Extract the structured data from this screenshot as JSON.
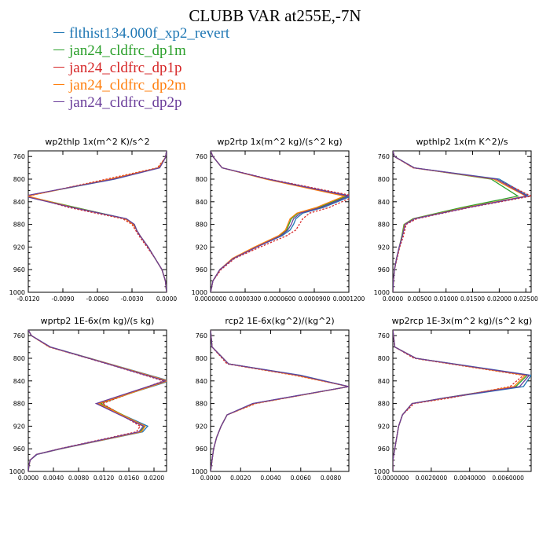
{
  "page_title": "CLUBB VAR at255E,-7N",
  "colors": {
    "blue": "#1f77b4",
    "green": "#2ca02c",
    "red": "#d62728",
    "orange": "#ff7f0e",
    "purple": "#6a3d9a"
  },
  "legend": [
    {
      "label": "flthist134.000f_xp2_revert",
      "color": "#1f77b4"
    },
    {
      "label": "jan24_cldfrc_dp1m",
      "color": "#2ca02c"
    },
    {
      "label": "jan24_cldfrc_dp1p",
      "color": "#d62728"
    },
    {
      "label": "jan24_cldfrc_dp2m",
      "color": "#ff7f0e"
    },
    {
      "label": "jan24_cldfrc_dp2p",
      "color": "#6a3d9a"
    }
  ],
  "chart_data": [
    {
      "type": "line",
      "title": "wp2thlp  1x(m^2 K)/s^2",
      "xlim": [
        -0.012,
        0.0
      ],
      "ylim": [
        760,
        1000
      ],
      "xticks": [
        "-0.0120",
        "-0.0090",
        "-0.0060",
        "-0.0030",
        "0.0000"
      ],
      "xtick_values": [
        -0.012,
        -0.009,
        -0.006,
        -0.003,
        0.0
      ],
      "yticks": [
        "760",
        "800",
        "840",
        "880",
        "920",
        "960",
        "1000"
      ],
      "y": [
        750,
        762,
        780,
        800,
        830,
        850,
        870,
        880,
        890,
        900,
        920,
        940,
        960,
        980,
        1000
      ],
      "series": [
        {
          "name": "flthist134.000f_xp2_revert",
          "color": "#1f77b4",
          "dash": false,
          "values": [
            0,
            -0.0001,
            -0.0006,
            -0.0045,
            -0.0123,
            -0.008,
            -0.0035,
            -0.0028,
            -0.0026,
            -0.0023,
            -0.0016,
            -0.001,
            -0.0004,
            -0.0001,
            0
          ]
        },
        {
          "name": "jan24_cldfrc_dp1m",
          "color": "#2ca02c",
          "dash": false,
          "values": [
            0,
            -0.0001,
            -0.0007,
            -0.0047,
            -0.0122,
            -0.0079,
            -0.0036,
            -0.0028,
            -0.0026,
            -0.0023,
            -0.0016,
            -0.001,
            -0.0004,
            -0.0001,
            0
          ]
        },
        {
          "name": "jan24_cldfrc_dp1p",
          "color": "#d62728",
          "dash": true,
          "values": [
            0,
            -0.0001,
            -0.0008,
            -0.0052,
            -0.012,
            -0.0085,
            -0.0038,
            -0.003,
            -0.0027,
            -0.0024,
            -0.0017,
            -0.001,
            -0.0004,
            -0.0001,
            0
          ]
        },
        {
          "name": "jan24_cldfrc_dp2m",
          "color": "#ff7f0e",
          "dash": false,
          "values": [
            0,
            -0.0001,
            -0.0007,
            -0.0049,
            -0.0121,
            -0.0081,
            -0.0036,
            -0.0029,
            -0.0026,
            -0.0023,
            -0.0016,
            -0.001,
            -0.0004,
            -0.0001,
            0
          ]
        },
        {
          "name": "jan24_cldfrc_dp2p",
          "color": "#6a3d9a",
          "dash": false,
          "values": [
            0,
            -0.0001,
            -0.0006,
            -0.0046,
            -0.0124,
            -0.0082,
            -0.0035,
            -0.0028,
            -0.0026,
            -0.0023,
            -0.0016,
            -0.001,
            -0.0004,
            -0.0001,
            0
          ]
        }
      ]
    },
    {
      "type": "line",
      "title": "wp2rtp  1x(m^2 kg)/(s^2 kg)",
      "xlim": [
        0.0,
        0.00012
      ],
      "ylim": [
        760,
        1000
      ],
      "xticks": [
        "0.0000000",
        "0.0000300",
        "0.0000600",
        "0.0000900",
        "0.0001200"
      ],
      "xtick_values": [
        0,
        3e-05,
        6e-05,
        9e-05,
        0.00012
      ],
      "yticks": [
        "760",
        "800",
        "840",
        "880",
        "920",
        "960",
        "1000"
      ],
      "y": [
        750,
        760,
        780,
        800,
        830,
        850,
        860,
        870,
        880,
        890,
        900,
        920,
        940,
        960,
        980,
        1000
      ],
      "series": [
        {
          "name": "flthist134.000f_xp2_revert",
          "color": "#1f77b4",
          "dash": false,
          "values": [
            0,
            2e-06,
            1e-05,
            5e-05,
            0.000122,
            9.8e-05,
            8e-05,
            7.4e-05,
            7.2e-05,
            6.9e-05,
            6.2e-05,
            4e-05,
            2e-05,
            8e-06,
            2e-06,
            0
          ]
        },
        {
          "name": "jan24_cldfrc_dp1m",
          "color": "#2ca02c",
          "dash": false,
          "values": [
            0,
            2e-06,
            1e-05,
            4.9e-05,
            0.000118,
            9.4e-05,
            7.6e-05,
            7e-05,
            6.8e-05,
            6.6e-05,
            6e-05,
            3.9e-05,
            2e-05,
            8e-06,
            2e-06,
            0
          ]
        },
        {
          "name": "jan24_cldfrc_dp1p",
          "color": "#d62728",
          "dash": true,
          "values": [
            0,
            2e-06,
            1e-05,
            5.1e-05,
            0.000125,
            0.000103,
            8.6e-05,
            8e-05,
            7.7e-05,
            7.4e-05,
            6.6e-05,
            4.3e-05,
            2.1e-05,
            9e-06,
            2e-06,
            0
          ]
        },
        {
          "name": "jan24_cldfrc_dp2m",
          "color": "#ff7f0e",
          "dash": false,
          "values": [
            0,
            2e-06,
            1e-05,
            4.8e-05,
            0.000116,
            9.2e-05,
            7.5e-05,
            6.9e-05,
            6.7e-05,
            6.5e-05,
            5.9e-05,
            3.8e-05,
            1.9e-05,
            8e-06,
            2e-06,
            0
          ]
        },
        {
          "name": "jan24_cldfrc_dp2p",
          "color": "#6a3d9a",
          "dash": false,
          "values": [
            0,
            2e-06,
            1e-05,
            5e-05,
            0.00012,
            9.6e-05,
            7.8e-05,
            7.2e-05,
            7e-05,
            6.7e-05,
            6.1e-05,
            4e-05,
            2e-05,
            8e-06,
            2e-06,
            0
          ]
        }
      ]
    },
    {
      "type": "line",
      "title": "wpthlp2  1x(m K^2)/s",
      "xlim": [
        0.0,
        0.026
      ],
      "ylim": [
        760,
        1000
      ],
      "xticks": [
        "0.0000",
        "0.00500",
        "0.01000",
        "0.01500",
        "0.02000",
        "0.02500"
      ],
      "xtick_values": [
        0,
        0.005,
        0.01,
        0.015,
        0.02,
        0.025
      ],
      "yticks": [
        "760",
        "800",
        "840",
        "880",
        "920",
        "960",
        "1000"
      ],
      "y": [
        750,
        760,
        780,
        800,
        830,
        850,
        870,
        880,
        900,
        920,
        940,
        960,
        980,
        1000
      ],
      "series": [
        {
          "name": "flthist134.000f_xp2_revert",
          "color": "#1f77b4",
          "dash": false,
          "values": [
            0,
            0.0003,
            0.004,
            0.02,
            0.0255,
            0.014,
            0.004,
            0.0022,
            0.0018,
            0.0012,
            0.0007,
            0.0003,
            0.0001,
            0
          ]
        },
        {
          "name": "jan24_cldfrc_dp1m",
          "color": "#2ca02c",
          "dash": false,
          "values": [
            0,
            0.0003,
            0.004,
            0.0185,
            0.0235,
            0.013,
            0.0038,
            0.0021,
            0.0017,
            0.0012,
            0.0007,
            0.0003,
            0.0001,
            0
          ]
        },
        {
          "name": "jan24_cldfrc_dp1p",
          "color": "#d62728",
          "dash": true,
          "values": [
            0,
            0.0003,
            0.0038,
            0.0195,
            0.026,
            0.0145,
            0.0045,
            0.0025,
            0.002,
            0.0013,
            0.0008,
            0.0003,
            0.0001,
            0
          ]
        },
        {
          "name": "jan24_cldfrc_dp2m",
          "color": "#ff7f0e",
          "dash": false,
          "values": [
            0,
            0.0003,
            0.0039,
            0.019,
            0.025,
            0.0138,
            0.004,
            0.0022,
            0.0018,
            0.0012,
            0.0007,
            0.0003,
            0.0001,
            0
          ]
        },
        {
          "name": "jan24_cldfrc_dp2p",
          "color": "#6a3d9a",
          "dash": false,
          "values": [
            0,
            0.0003,
            0.004,
            0.0195,
            0.0252,
            0.0142,
            0.0041,
            0.0023,
            0.0018,
            0.0012,
            0.0007,
            0.0003,
            0.0001,
            0
          ]
        }
      ]
    },
    {
      "type": "line",
      "title": "wprtp2  1E-6x(m kg)/(s kg)",
      "xlim": [
        0.0,
        0.022
      ],
      "ylim": [
        760,
        1000
      ],
      "xticks": [
        "0.0000",
        "0.0040",
        "0.0080",
        "0.0120",
        "0.0160",
        "0.0200"
      ],
      "xtick_values": [
        0,
        0.004,
        0.008,
        0.012,
        0.016,
        0.02
      ],
      "yticks": [
        "760",
        "800",
        "840",
        "880",
        "920",
        "960",
        "1000"
      ],
      "y": [
        750,
        760,
        780,
        810,
        840,
        880,
        920,
        930,
        960,
        970,
        980,
        990,
        1000
      ],
      "series": [
        {
          "name": "flthist134.000f_xp2_revert",
          "color": "#1f77b4",
          "dash": false,
          "values": [
            0,
            0.0005,
            0.0035,
            0.013,
            0.0225,
            0.011,
            0.019,
            0.0182,
            0.0052,
            0.0014,
            0.0003,
            0.0001,
            0
          ]
        },
        {
          "name": "jan24_cldfrc_dp1m",
          "color": "#2ca02c",
          "dash": false,
          "values": [
            0,
            0.0005,
            0.0034,
            0.0128,
            0.022,
            0.0115,
            0.0185,
            0.0178,
            0.005,
            0.0013,
            0.0003,
            0.0001,
            0
          ]
        },
        {
          "name": "jan24_cldfrc_dp1p",
          "color": "#d62728",
          "dash": true,
          "values": [
            0,
            0.0005,
            0.0033,
            0.0126,
            0.0215,
            0.0118,
            0.0178,
            0.0172,
            0.0049,
            0.0013,
            0.0003,
            0.0001,
            0
          ]
        },
        {
          "name": "jan24_cldfrc_dp2m",
          "color": "#ff7f0e",
          "dash": false,
          "values": [
            0,
            0.0005,
            0.0034,
            0.0129,
            0.0222,
            0.0112,
            0.0186,
            0.018,
            0.0051,
            0.0013,
            0.0003,
            0.0001,
            0
          ]
        },
        {
          "name": "jan24_cldfrc_dp2p",
          "color": "#6a3d9a",
          "dash": false,
          "values": [
            0,
            0.0005,
            0.0035,
            0.0127,
            0.0218,
            0.0108,
            0.0183,
            0.0176,
            0.005,
            0.0013,
            0.0003,
            0.0001,
            0
          ]
        }
      ]
    },
    {
      "type": "line",
      "title": "rcp2  1E-6x(kg^2)/(kg^2)",
      "xlim": [
        0.0,
        0.0092
      ],
      "ylim": [
        760,
        1000
      ],
      "xticks": [
        "0.0000",
        "0.0020",
        "0.0040",
        "0.0060",
        "0.0080"
      ],
      "xtick_values": [
        0,
        0.002,
        0.004,
        0.006,
        0.008
      ],
      "yticks": [
        "760",
        "800",
        "840",
        "880",
        "920",
        "960",
        "1000"
      ],
      "y": [
        750,
        780,
        810,
        830,
        850,
        880,
        900,
        920,
        940,
        960,
        980,
        1000
      ],
      "series": [
        {
          "name": "flthist134.000f_xp2_revert",
          "color": "#1f77b4",
          "dash": false,
          "values": [
            0,
            0.0001,
            0.0012,
            0.006,
            0.0092,
            0.0028,
            0.0011,
            0.0007,
            0.0004,
            0.0002,
            0.0001,
            0
          ]
        },
        {
          "name": "jan24_cldfrc_dp1m",
          "color": "#2ca02c",
          "dash": false,
          "values": [
            0,
            0.0001,
            0.0012,
            0.0058,
            0.0092,
            0.0029,
            0.0011,
            0.0007,
            0.0004,
            0.0002,
            0.0001,
            0
          ]
        },
        {
          "name": "jan24_cldfrc_dp1p",
          "color": "#d62728",
          "dash": true,
          "values": [
            0,
            0.0001,
            0.0011,
            0.0056,
            0.0092,
            0.003,
            0.0011,
            0.0007,
            0.0004,
            0.0002,
            0.0001,
            0
          ]
        },
        {
          "name": "jan24_cldfrc_dp2m",
          "color": "#ff7f0e",
          "dash": false,
          "values": [
            0,
            0.0001,
            0.0012,
            0.0057,
            0.0092,
            0.0029,
            0.0011,
            0.0007,
            0.0004,
            0.0002,
            0.0001,
            0
          ]
        },
        {
          "name": "jan24_cldfrc_dp2p",
          "color": "#6a3d9a",
          "dash": false,
          "values": [
            0,
            0.0001,
            0.0012,
            0.0059,
            0.0092,
            0.0028,
            0.0011,
            0.0007,
            0.0004,
            0.0002,
            0.0001,
            0
          ]
        }
      ]
    },
    {
      "type": "line",
      "title": "wp2rcp  1E-3x(m^2 kg)/(s^2 kg)",
      "xlim": [
        0.0,
        0.0072
      ],
      "ylim": [
        760,
        1000
      ],
      "xticks": [
        "0.0000000",
        "0.0020000",
        "0.0040000",
        "0.0060000"
      ],
      "xtick_values": [
        0,
        0.002,
        0.004,
        0.006
      ],
      "yticks": [
        "760",
        "800",
        "840",
        "880",
        "920",
        "960",
        "1000"
      ],
      "y": [
        750,
        780,
        800,
        830,
        850,
        870,
        880,
        900,
        920,
        940,
        960,
        980,
        1000
      ],
      "series": [
        {
          "name": "flthist134.000f_xp2_revert",
          "color": "#1f77b4",
          "dash": false,
          "values": [
            0,
            0.0001,
            0.0012,
            0.0072,
            0.0068,
            0.0028,
            0.001,
            0.0005,
            0.0003,
            0.0002,
            0.0001,
            0,
            0
          ]
        },
        {
          "name": "jan24_cldfrc_dp1m",
          "color": "#2ca02c",
          "dash": false,
          "values": [
            0,
            0.0001,
            0.0012,
            0.007,
            0.0064,
            0.0027,
            0.001,
            0.0005,
            0.0003,
            0.0002,
            0.0001,
            0,
            0
          ]
        },
        {
          "name": "jan24_cldfrc_dp1p",
          "color": "#d62728",
          "dash": true,
          "values": [
            0,
            0.0001,
            0.0011,
            0.0068,
            0.0061,
            0.003,
            0.0011,
            0.0005,
            0.0003,
            0.0002,
            0.0001,
            0,
            0
          ]
        },
        {
          "name": "jan24_cldfrc_dp2m",
          "color": "#ff7f0e",
          "dash": false,
          "values": [
            0,
            0.0001,
            0.0012,
            0.0069,
            0.0063,
            0.0028,
            0.001,
            0.0005,
            0.0003,
            0.0002,
            0.0001,
            0,
            0
          ]
        },
        {
          "name": "jan24_cldfrc_dp2p",
          "color": "#6a3d9a",
          "dash": false,
          "values": [
            0,
            0.0001,
            0.0012,
            0.0071,
            0.0066,
            0.0027,
            0.001,
            0.0005,
            0.0003,
            0.0002,
            0.0001,
            0,
            0
          ]
        }
      ]
    }
  ]
}
